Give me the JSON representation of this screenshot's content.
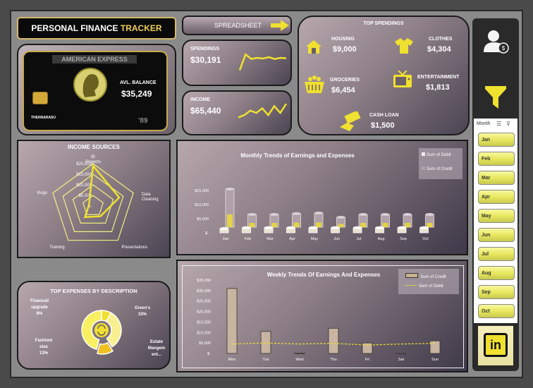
{
  "header": {
    "title_prefix": "PERSONAL FINANCE ",
    "title_accent": "TRACKER"
  },
  "card": {
    "brand": "AMERICAN EXPRESS",
    "holder": "THENNARASU",
    "year": "'89",
    "label": "AVL. BALANCE",
    "balance": "$35,249"
  },
  "nav": {
    "spreadsheet_label": "SPREADSHEET"
  },
  "spendings": {
    "label": "SPENDINGS",
    "value": "$30,191",
    "spark": [
      0.2,
      0.9,
      0.7,
      0.75,
      0.72,
      0.78,
      0.7,
      0.75,
      0.73
    ]
  },
  "income": {
    "label": "INCOME",
    "value": "$65,440",
    "spark": [
      0.3,
      0.4,
      0.6,
      0.5,
      0.7,
      0.4,
      0.8,
      0.5,
      0.9
    ]
  },
  "top_spendings": {
    "title": "TOP SPENDINGS",
    "items": [
      {
        "label": "HOUSING",
        "value": "$9,000",
        "icon": "house-icon"
      },
      {
        "label": "CLOTHES",
        "value": "$4,304",
        "icon": "shirt-icon"
      },
      {
        "label": "GROCERIES",
        "value": "$6,454",
        "icon": "basket-icon"
      },
      {
        "label": "ENTERTAINMENT",
        "value": "$1,813",
        "icon": "tv-icon"
      },
      {
        "label": "CASH LOAN",
        "value": "$1,500",
        "icon": "cash-hand-icon"
      }
    ]
  },
  "income_sources": {
    "title": "INCOME SOURCES",
    "ticks": [
      "$-",
      "$5,000",
      "$10,000",
      "$15,000",
      "$20,000"
    ],
    "axes": [
      "BI Projects",
      "Data Cleaning",
      "Presentations",
      "Training",
      "Vlogs"
    ],
    "values": [
      19000,
      13000,
      6000,
      6500,
      2000
    ],
    "max": 20000
  },
  "monthly": {
    "title": "Monthly Trends of Earnings and Expenses",
    "legend": [
      "Sum of Debit",
      "Sum of Credit"
    ],
    "yticks": [
      "$-",
      "$5,000",
      "$10,000",
      "$15,000"
    ],
    "ymax": 15000
  },
  "weekly": {
    "title": "Weekly Trends Of  Earnings And Expenses",
    "legend": [
      "Sum of Credit",
      "Sum of Debit"
    ],
    "yticks": [
      "$-",
      "$5,000",
      "$10,000",
      "$15,000",
      "$20,000",
      "$25,000",
      "$30,000",
      "$35,000"
    ],
    "ymax": 35000
  },
  "expenses": {
    "title": "TOP EXPENSES BY DESCRIPTION",
    "labels": [
      {
        "name": "Financail upgrade",
        "pct": "8%"
      },
      {
        "name": "Green's",
        "pct": "33%"
      },
      {
        "name": "Fashioni stas",
        "pct": "13%"
      },
      {
        "name": "Estate Mangem ent...",
        "pct": ""
      }
    ]
  },
  "slicer": {
    "title": "Month",
    "items": [
      "Jan",
      "Feb",
      "Mar",
      "Apr",
      "May",
      "Jun",
      "Jul",
      "Aug",
      "Sep",
      "Oct"
    ]
  },
  "chart_data": [
    {
      "type": "bar",
      "title": "Monthly Trends of Earnings and Expenses",
      "categories": [
        "Jan",
        "Feb",
        "Mar",
        "Apr",
        "May",
        "Jun",
        "Jul",
        "Aug",
        "Sep",
        "Oct"
      ],
      "series": [
        {
          "name": "Sum of Debit",
          "values": [
            1500,
            1800,
            1800,
            1800,
            1800,
            1800,
            1800,
            1800,
            1800,
            1800
          ]
        },
        {
          "name": "Sum of Credit",
          "values": [
            13500,
            4500,
            4500,
            4800,
            5000,
            3500,
            4500,
            4500,
            4500,
            4500
          ]
        }
      ],
      "ylim": [
        0,
        15000
      ]
    },
    {
      "type": "bar",
      "title": "Weekly Trends Of  Earnings And Expenses",
      "categories": [
        "Mon",
        "Tue",
        "Wed",
        "Thu",
        "Fri",
        "Sat",
        "Sun"
      ],
      "series": [
        {
          "name": "Sum of Credit",
          "values": [
            31000,
            10500,
            200,
            12000,
            5000,
            200,
            6000
          ]
        },
        {
          "name": "Sum of Debit",
          "values": [
            4500,
            5000,
            4500,
            4800,
            4000,
            4500,
            4800
          ]
        }
      ],
      "ylim": [
        0,
        35000
      ]
    },
    {
      "type": "radar",
      "title": "INCOME SOURCES",
      "categories": [
        "BI Projects",
        "Data Cleaning",
        "Presentations",
        "Training",
        "Vlogs"
      ],
      "values": [
        19000,
        13000,
        6000,
        6500,
        2000
      ]
    },
    {
      "type": "pie",
      "title": "TOP EXPENSES BY DESCRIPTION",
      "categories": [
        "Financail upgrade",
        "Green's",
        "Fashioni stas",
        "Estate Mangem ent..."
      ],
      "values": [
        8,
        33,
        13,
        46
      ]
    }
  ]
}
